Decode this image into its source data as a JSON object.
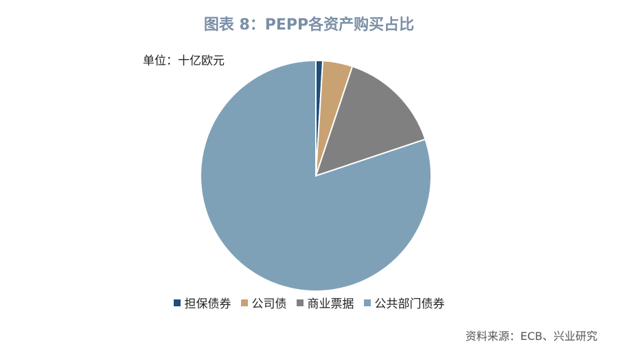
{
  "title": "图表 8：PEPP各资产购买占比",
  "unit_label": "单位：十亿欧元",
  "source": "资料来源：ECB、兴业研究",
  "chart_data": {
    "type": "pie",
    "categories": [
      "担保债券",
      "公司债",
      "商业票据",
      "公共部门债券"
    ],
    "values": [
      3,
      13,
      46,
      250
    ],
    "colors": [
      "#1f4e79",
      "#c8a272",
      "#808080",
      "#7fa1b8"
    ],
    "start_angle_deg": 0,
    "legend_position": "bottom"
  }
}
